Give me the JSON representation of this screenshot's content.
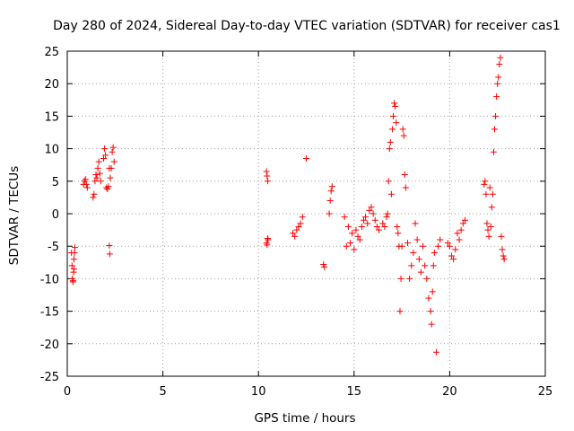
{
  "chart_data": {
    "type": "scatter",
    "title": "Day 280 of 2024, Sidereal Day-to-day VTEC variation (SDTVAR) for receiver cas1",
    "xlabel": "GPS time / hours",
    "ylabel": "SDTVAR / TECUs",
    "xlim": [
      0,
      25
    ],
    "ylim": [
      -25,
      25
    ],
    "xticks": [
      0,
      5,
      10,
      15,
      20,
      25
    ],
    "yticks": [
      -25,
      -20,
      -15,
      -10,
      -5,
      0,
      5,
      10,
      15,
      20,
      25
    ],
    "grid": true,
    "marker": "plus",
    "color": "#ff0000",
    "series": [
      {
        "name": "SDTVAR",
        "x": [
          0.22,
          0.25,
          0.27,
          0.3,
          0.33,
          0.35,
          0.38,
          0.4,
          0.3,
          0.35,
          0.85,
          0.9,
          0.95,
          1.0,
          1.05,
          1.35,
          1.4,
          1.45,
          1.5,
          1.55,
          1.6,
          1.65,
          1.7,
          1.75,
          1.9,
          1.95,
          2.0,
          2.05,
          2.1,
          2.15,
          2.2,
          2.25,
          2.3,
          2.35,
          2.4,
          2.45,
          2.2,
          2.22,
          10.42,
          10.45,
          10.48,
          10.5,
          10.42,
          10.45,
          10.48,
          11.8,
          11.9,
          12.0,
          12.1,
          12.2,
          12.3,
          12.5,
          13.4,
          13.45,
          13.7,
          13.75,
          13.8,
          13.85,
          14.5,
          14.6,
          14.7,
          14.8,
          14.9,
          15.0,
          15.1,
          15.2,
          15.3,
          15.4,
          15.5,
          15.6,
          15.7,
          15.8,
          15.9,
          16.0,
          16.1,
          16.2,
          16.3,
          16.5,
          16.6,
          16.7,
          16.75,
          16.8,
          16.85,
          16.9,
          16.95,
          17.0,
          17.05,
          17.1,
          17.15,
          17.2,
          17.25,
          17.3,
          17.35,
          17.4,
          17.45,
          17.5,
          17.55,
          17.6,
          17.65,
          17.7,
          17.8,
          17.9,
          18.0,
          18.1,
          18.2,
          18.3,
          18.4,
          18.5,
          18.6,
          18.7,
          18.8,
          18.9,
          19.0,
          19.05,
          19.1,
          19.15,
          19.2,
          19.3,
          19.4,
          19.5,
          19.9,
          20.0,
          20.1,
          20.2,
          20.3,
          20.4,
          20.5,
          20.6,
          20.7,
          20.8,
          21.8,
          21.85,
          21.9,
          21.95,
          22.0,
          22.05,
          22.1,
          22.15,
          22.2,
          22.25,
          22.3,
          22.35,
          22.4,
          22.45,
          22.5,
          22.55,
          22.6,
          22.65,
          22.7,
          22.75,
          22.8,
          22.85
        ],
        "y": [
          -6,
          -8,
          -10,
          -10.5,
          -9,
          -7,
          -6,
          -5.2,
          -10.3,
          -8.5,
          4.5,
          5,
          5.3,
          4.5,
          4,
          2.5,
          3,
          5,
          6,
          5.5,
          7,
          8,
          6.2,
          5,
          8.5,
          10,
          9,
          4,
          3.8,
          4.2,
          -4.9,
          5.5,
          7,
          9.5,
          10.2,
          8,
          7,
          -6.2,
          6.5,
          5.8,
          5,
          -4,
          -4.5,
          -4.8,
          -3.8,
          -3,
          -3.5,
          -2.5,
          -2,
          -1.5,
          -0.5,
          8.5,
          -7.8,
          -8.2,
          0,
          2,
          3.5,
          4.2,
          -0.5,
          -5,
          -2,
          -4.5,
          -3,
          -5.5,
          -2.5,
          -3.5,
          -4,
          -2,
          -1,
          -0.5,
          -1.5,
          0.5,
          1,
          0,
          -1,
          -2,
          -2.5,
          -1.5,
          -2,
          -0.5,
          0,
          5,
          10,
          11,
          3,
          13,
          15,
          17,
          16.5,
          14,
          -2,
          -3,
          -5,
          -15,
          -10,
          -5,
          13,
          12,
          6,
          4,
          -4.5,
          -10,
          -8,
          -6,
          -1.5,
          -4,
          -7,
          -9,
          -5,
          -8,
          -10,
          -13,
          -15,
          -17,
          -12,
          -8,
          -6,
          -21.3,
          -5,
          -4,
          -4.5,
          -5,
          -6.5,
          -7,
          -5.5,
          -3,
          -4,
          -2.5,
          -1.5,
          -1,
          4.5,
          5,
          3,
          -1.5,
          -2.5,
          -3.5,
          4,
          -2,
          1,
          3,
          9.5,
          13,
          15,
          18,
          20,
          21,
          23,
          24,
          -3.5,
          -5.5,
          -6.5,
          -7
        ]
      }
    ]
  }
}
